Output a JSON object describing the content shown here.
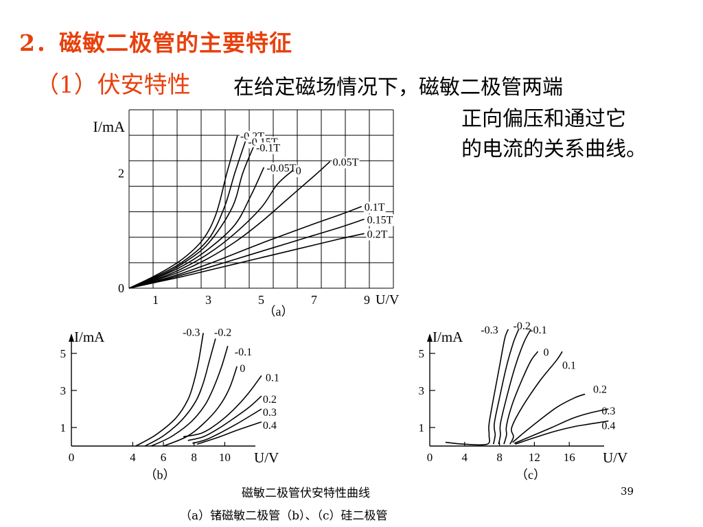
{
  "slide": {
    "heading": "2．磁敏二极管的主要特征",
    "subheading": "（1）伏安特性",
    "description_lines": [
      "在给定磁场情况下，磁敏二极管两端",
      "正向偏压和通过它",
      "的电流的关系曲线。"
    ],
    "caption_line1": "磁敏二极管伏安特性曲线",
    "caption_line2": "（a）锗磁敏二极管（b）、（c）硅二极管",
    "page_number": "39",
    "colors": {
      "heading": "#e8400c",
      "text": "#000000"
    }
  },
  "chart_data": [
    {
      "type": "line",
      "panel_label": "（a）",
      "ylabel": "I/mA",
      "xlabel": "U/V",
      "xlim": [
        0,
        10
      ],
      "ylim": [
        0,
        3.1
      ],
      "xticks": [
        "1",
        "3",
        "5",
        "7",
        "9"
      ],
      "yticks": [
        "0",
        "2"
      ],
      "grid": true,
      "series": [
        {
          "name": "-0.2T",
          "points": [
            [
              0,
              0
            ],
            [
              1,
              0.22
            ],
            [
              2,
              0.5
            ],
            [
              2.8,
              0.85
            ],
            [
              3.3,
              1.3
            ],
            [
              3.7,
              2.0
            ],
            [
              4.1,
              2.65
            ]
          ]
        },
        {
          "name": "-0.15T",
          "points": [
            [
              0,
              0
            ],
            [
              1,
              0.2
            ],
            [
              2,
              0.45
            ],
            [
              3,
              0.85
            ],
            [
              3.6,
              1.4
            ],
            [
              4.0,
              2.0
            ],
            [
              4.4,
              2.55
            ]
          ]
        },
        {
          "name": "-0.1T",
          "points": [
            [
              0,
              0
            ],
            [
              1,
              0.18
            ],
            [
              2,
              0.42
            ],
            [
              3,
              0.78
            ],
            [
              3.9,
              1.4
            ],
            [
              4.3,
              2.0
            ],
            [
              4.7,
              2.45
            ]
          ]
        },
        {
          "name": "-0.05T",
          "points": [
            [
              0,
              0
            ],
            [
              1,
              0.17
            ],
            [
              2,
              0.38
            ],
            [
              3,
              0.68
            ],
            [
              4,
              1.1
            ],
            [
              4.6,
              1.6
            ],
            [
              5.1,
              2.1
            ]
          ]
        },
        {
          "name": "0",
          "points": [
            [
              0,
              0
            ],
            [
              1,
              0.15
            ],
            [
              2,
              0.34
            ],
            [
              3,
              0.6
            ],
            [
              4,
              0.95
            ],
            [
              5,
              1.4
            ],
            [
              5.6,
              1.8
            ],
            [
              6.2,
              2.05
            ]
          ]
        },
        {
          "name": "0.05T",
          "points": [
            [
              0,
              0
            ],
            [
              1,
              0.14
            ],
            [
              2,
              0.3
            ],
            [
              3,
              0.52
            ],
            [
              4,
              0.8
            ],
            [
              5,
              1.15
            ],
            [
              6,
              1.55
            ],
            [
              7,
              1.95
            ],
            [
              7.6,
              2.2
            ]
          ]
        },
        {
          "name": "0.1T",
          "points": [
            [
              0,
              0
            ],
            [
              1,
              0.12
            ],
            [
              2,
              0.26
            ],
            [
              3,
              0.42
            ],
            [
              4,
              0.6
            ],
            [
              5,
              0.78
            ],
            [
              6,
              0.95
            ],
            [
              7,
              1.12
            ],
            [
              8,
              1.28
            ],
            [
              8.8,
              1.42
            ]
          ]
        },
        {
          "name": "0.15T",
          "points": [
            [
              0,
              0
            ],
            [
              1,
              0.11
            ],
            [
              2,
              0.23
            ],
            [
              3,
              0.36
            ],
            [
              4,
              0.5
            ],
            [
              5,
              0.64
            ],
            [
              6,
              0.78
            ],
            [
              7,
              0.92
            ],
            [
              8,
              1.06
            ],
            [
              8.9,
              1.2
            ]
          ]
        },
        {
          "name": "0.2T",
          "points": [
            [
              0,
              0
            ],
            [
              1,
              0.1
            ],
            [
              2,
              0.2
            ],
            [
              3,
              0.31
            ],
            [
              4,
              0.42
            ],
            [
              5,
              0.53
            ],
            [
              6,
              0.64
            ],
            [
              7,
              0.75
            ],
            [
              8,
              0.86
            ],
            [
              8.9,
              0.95
            ]
          ]
        }
      ]
    },
    {
      "type": "line",
      "panel_label": "（b）",
      "ylabel": "I/mA",
      "xlabel": "U/V",
      "xlim": [
        0,
        12
      ],
      "ylim": [
        0,
        6
      ],
      "xticks": [
        "0",
        "4",
        "6",
        "8",
        "10"
      ],
      "yticks": [
        "1",
        "3",
        "5"
      ],
      "grid": false,
      "series": [
        {
          "name": "-0.3",
          "points": [
            [
              4.2,
              0
            ],
            [
              5.5,
              0.6
            ],
            [
              6.8,
              1.5
            ],
            [
              7.6,
              2.5
            ],
            [
              8.0,
              3.5
            ],
            [
              8.3,
              4.6
            ],
            [
              8.6,
              6.1
            ]
          ]
        },
        {
          "name": "-0.2",
          "points": [
            [
              4.8,
              0
            ],
            [
              6,
              0.55
            ],
            [
              7.2,
              1.4
            ],
            [
              8.1,
              2.4
            ],
            [
              8.6,
              3.4
            ],
            [
              9,
              4.6
            ],
            [
              9.4,
              5.8
            ]
          ]
        },
        {
          "name": "-0.1",
          "points": [
            [
              5.2,
              0
            ],
            [
              6.5,
              0.5
            ],
            [
              7.8,
              1.3
            ],
            [
              8.7,
              2.2
            ],
            [
              9.3,
              3.2
            ],
            [
              9.8,
              4.3
            ],
            [
              10.2,
              5.4
            ]
          ]
        },
        {
          "name": "0",
          "points": [
            [
              6.0,
              0
            ],
            [
              7.5,
              0.5
            ],
            [
              8.6,
              1.2
            ],
            [
              9.6,
              2.1
            ],
            [
              10.3,
              3.1
            ],
            [
              10.8,
              4.3
            ]
          ]
        },
        {
          "name": "0.1",
          "points": [
            [
              7.3,
              0.5
            ],
            [
              8.5,
              0.7
            ],
            [
              9.5,
              1.2
            ],
            [
              10.5,
              1.9
            ],
            [
              11.5,
              2.8
            ],
            [
              12.4,
              3.8
            ]
          ]
        },
        {
          "name": "0.2",
          "points": [
            [
              7.6,
              0.3
            ],
            [
              8.6,
              0.5
            ],
            [
              9.6,
              0.95
            ],
            [
              10.6,
              1.5
            ],
            [
              11.6,
              2.1
            ],
            [
              12.4,
              2.7
            ]
          ]
        },
        {
          "name": "0.3",
          "points": [
            [
              7.9,
              0.15
            ],
            [
              8.8,
              0.35
            ],
            [
              9.8,
              0.75
            ],
            [
              10.8,
              1.2
            ],
            [
              11.7,
              1.65
            ],
            [
              12.4,
              2.0
            ]
          ]
        },
        {
          "name": "0.4",
          "points": [
            [
              8.2,
              0.1
            ],
            [
              9.5,
              0.45
            ],
            [
              10.8,
              0.85
            ],
            [
              12.4,
              1.3
            ]
          ]
        }
      ]
    },
    {
      "type": "line",
      "panel_label": "（c）",
      "ylabel": "I/mA",
      "xlabel": "U/V",
      "xlim": [
        0,
        20
      ],
      "ylim": [
        0,
        6
      ],
      "xticks": [
        "0",
        "4",
        "8",
        "12",
        "16"
      ],
      "yticks": [
        "1",
        "3",
        "5"
      ],
      "grid": false,
      "series": [
        {
          "name": "-0.3",
          "points": [
            [
              1.8,
              0.2
            ],
            [
              4,
              0.1
            ],
            [
              6.6,
              0.1
            ],
            [
              6.8,
              0.6
            ],
            [
              6.8,
              1.2
            ],
            [
              7.4,
              2.8
            ],
            [
              8,
              4.3
            ],
            [
              8.6,
              5.8
            ],
            [
              9,
              6.3
            ]
          ]
        },
        {
          "name": "-0.2",
          "points": [
            [
              7.3,
              0.1
            ],
            [
              7.5,
              0.6
            ],
            [
              7.4,
              1.2
            ],
            [
              8,
              2.6
            ],
            [
              8.8,
              4.3
            ],
            [
              9.6,
              5.6
            ],
            [
              10.2,
              6.3
            ]
          ]
        },
        {
          "name": "-0.1",
          "points": [
            [
              7.9,
              0.1
            ],
            [
              8.1,
              0.6
            ],
            [
              8.1,
              1.2
            ],
            [
              8.8,
              2.6
            ],
            [
              9.8,
              4.3
            ],
            [
              10.8,
              5.6
            ],
            [
              11.6,
              6.3
            ]
          ]
        },
        {
          "name": "0",
          "points": [
            [
              8.5,
              0.1
            ],
            [
              8.8,
              0.6
            ],
            [
              8.8,
              1.1
            ],
            [
              9.5,
              2.3
            ],
            [
              10.6,
              3.6
            ],
            [
              11.6,
              4.6
            ],
            [
              12.4,
              5.1
            ]
          ]
        },
        {
          "name": "0.1",
          "points": [
            [
              9.2,
              0.1
            ],
            [
              9.6,
              0.5
            ],
            [
              9.4,
              1.0
            ],
            [
              10.6,
              2.1
            ],
            [
              12.6,
              3.5
            ],
            [
              14.5,
              4.6
            ],
            [
              15.2,
              5.1
            ]
          ]
        },
        {
          "name": "0.2",
          "points": [
            [
              9.5,
              0.2
            ],
            [
              11,
              0.8
            ],
            [
              12.6,
              1.4
            ],
            [
              14.6,
              2.1
            ],
            [
              16.6,
              2.6
            ],
            [
              17.8,
              2.8
            ]
          ]
        },
        {
          "name": "0.3",
          "points": [
            [
              9.7,
              0.15
            ],
            [
              12,
              0.6
            ],
            [
              14,
              1.0
            ],
            [
              16.4,
              1.5
            ],
            [
              18.5,
              1.8
            ],
            [
              20.5,
              2.0
            ]
          ]
        },
        {
          "name": "0.4",
          "points": [
            [
              9.8,
              0.1
            ],
            [
              12,
              0.45
            ],
            [
              14.4,
              0.8
            ],
            [
              16.6,
              1.05
            ],
            [
              18.5,
              1.2
            ],
            [
              20.5,
              1.35
            ]
          ]
        }
      ]
    }
  ]
}
